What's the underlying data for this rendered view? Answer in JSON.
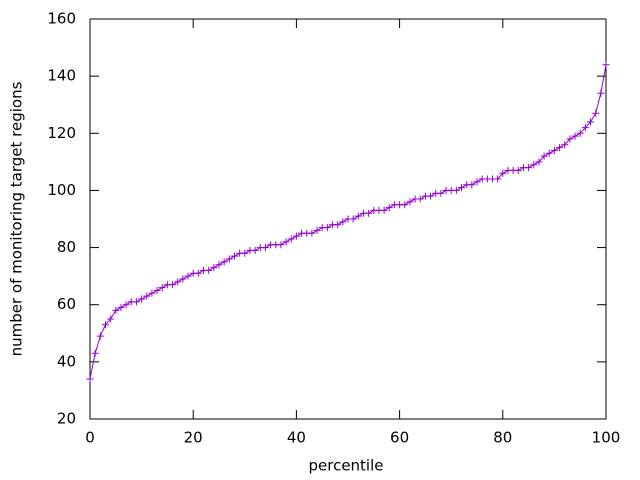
{
  "chart_data": {
    "type": "line",
    "x_label": "percentile",
    "y_label": "number of monitoring target regions",
    "color": "#9400d3",
    "marker": "+",
    "xlim": [
      0,
      100
    ],
    "xticks": [
      0,
      20,
      40,
      60,
      80,
      100
    ],
    "ylim": [
      20,
      160
    ],
    "yticks": [
      20,
      40,
      60,
      80,
      100,
      120,
      140,
      160
    ],
    "x": [
      0,
      1,
      2,
      3,
      4,
      5,
      6,
      7,
      8,
      9,
      10,
      11,
      12,
      13,
      14,
      15,
      16,
      17,
      18,
      19,
      20,
      21,
      22,
      23,
      24,
      25,
      26,
      27,
      28,
      29,
      30,
      31,
      32,
      33,
      34,
      35,
      36,
      37,
      38,
      39,
      40,
      41,
      42,
      43,
      44,
      45,
      46,
      47,
      48,
      49,
      50,
      51,
      52,
      53,
      54,
      55,
      56,
      57,
      58,
      59,
      60,
      61,
      62,
      63,
      64,
      65,
      66,
      67,
      68,
      69,
      70,
      71,
      72,
      73,
      74,
      75,
      76,
      77,
      78,
      79,
      80,
      81,
      82,
      83,
      84,
      85,
      86,
      87,
      88,
      89,
      90,
      91,
      92,
      93,
      94,
      95,
      96,
      97,
      98,
      99,
      100
    ],
    "values": [
      34,
      43,
      49,
      53,
      55,
      58,
      59,
      60,
      61,
      61,
      62,
      63,
      64,
      65,
      66,
      67,
      67,
      68,
      69,
      70,
      71,
      71,
      72,
      72,
      73,
      74,
      75,
      76,
      77,
      78,
      78,
      79,
      79,
      80,
      80,
      81,
      81,
      81,
      82,
      83,
      84,
      85,
      85,
      85,
      86,
      87,
      87,
      88,
      88,
      89,
      90,
      90,
      91,
      92,
      92,
      93,
      93,
      93,
      94,
      95,
      95,
      95,
      96,
      97,
      97,
      98,
      98,
      99,
      99,
      100,
      100,
      100,
      101,
      102,
      102,
      103,
      104,
      104,
      104,
      104,
      106,
      107,
      107,
      107,
      108,
      108,
      109,
      110,
      112,
      113,
      114,
      115,
      116,
      118,
      119,
      120,
      122,
      124,
      127,
      134,
      144
    ]
  }
}
